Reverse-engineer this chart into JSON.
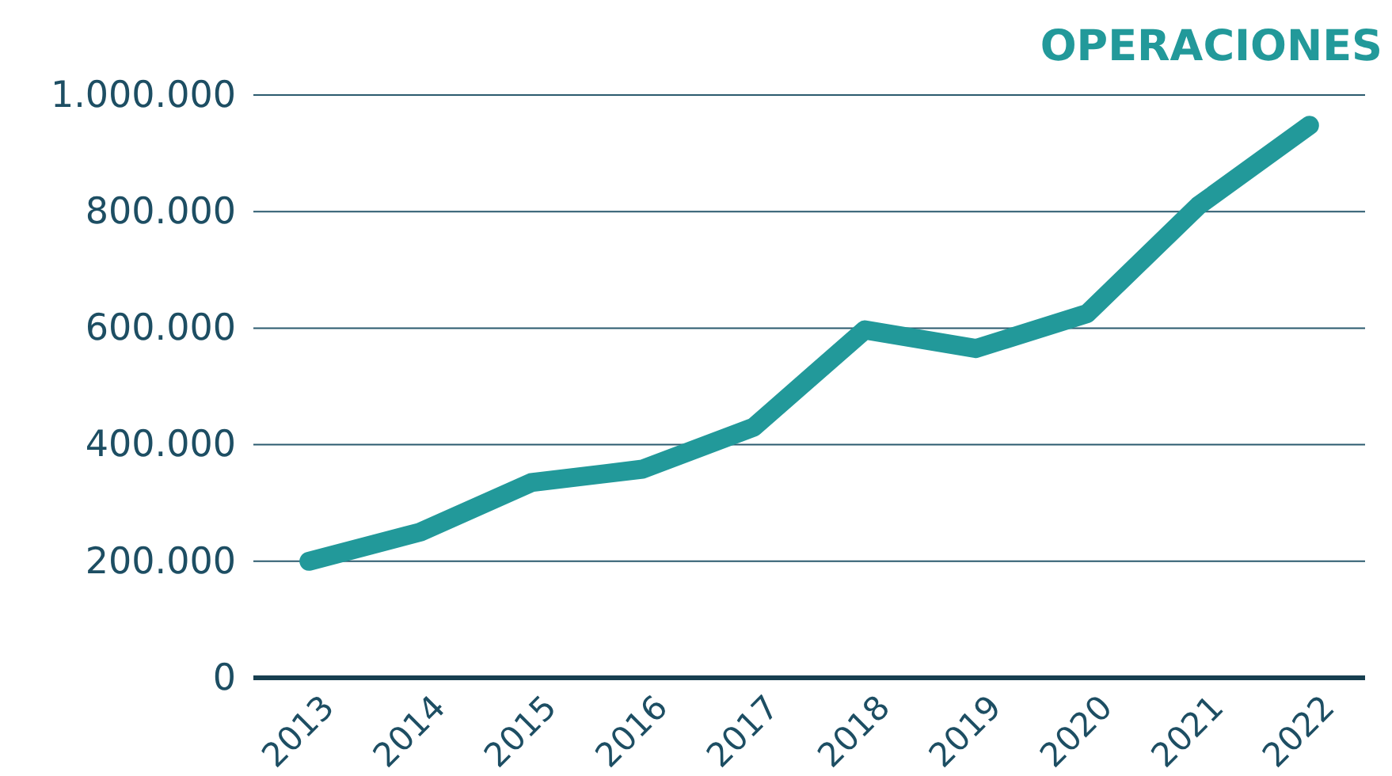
{
  "chart_data": {
    "type": "line",
    "title": "OPERACIONES",
    "categories": [
      "2013",
      "2014",
      "2015",
      "2016",
      "2017",
      "2018",
      "2019",
      "2020",
      "2021",
      "2022"
    ],
    "series": [
      {
        "color": "#22999a",
        "values": [
          200000,
          250000,
          335000,
          358000,
          430000,
          597000,
          565000,
          625000,
          810000,
          948000
        ]
      }
    ],
    "ylim": [
      0,
      1000000
    ],
    "yticks": [
      0,
      {
        "value": 200000,
        "label": "200.000"
      },
      {
        "value": 400000,
        "label": "400.000"
      },
      {
        "value": 600000,
        "label": "600.000"
      },
      {
        "value": 800000,
        "label": "800.000"
      },
      {
        "value": 1000000,
        "label": "1.000.000"
      }
    ],
    "grid": "y",
    "marker": "none",
    "line_style": "solid"
  }
}
